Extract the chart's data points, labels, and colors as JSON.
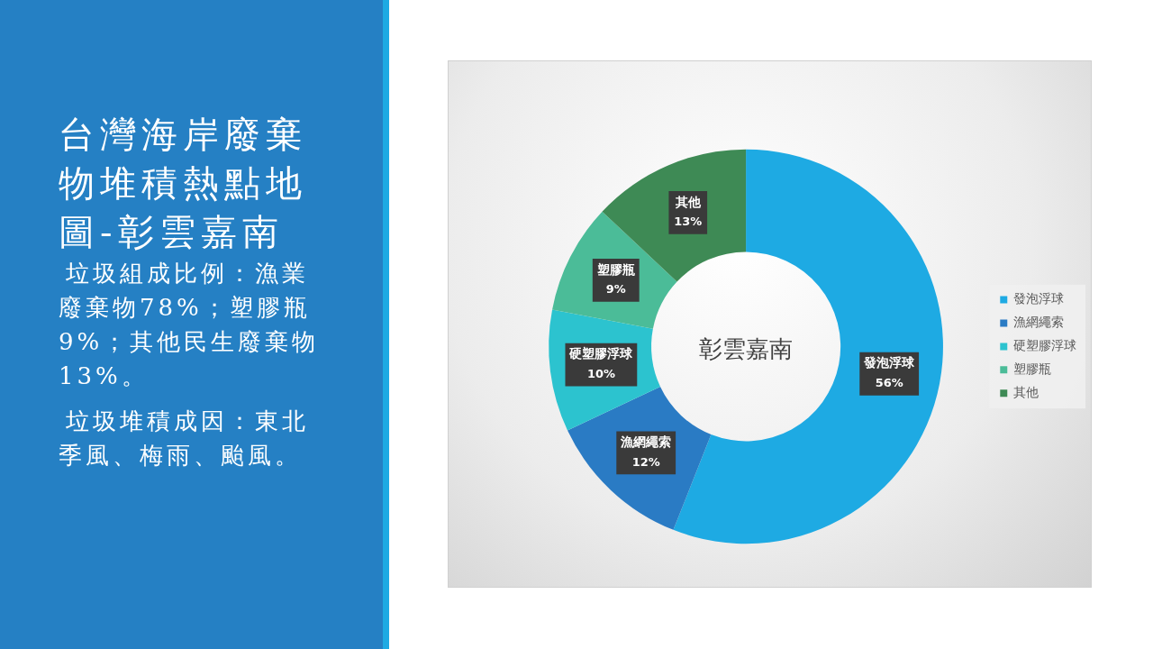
{
  "chart_data": {
    "type": "donut",
    "title": "台灣海岸廢棄物堆積熱點地圖-彰雲嘉南",
    "categories": [
      "發泡浮球",
      "漁網繩索",
      "硬塑膠浮球",
      "塑膠瓶",
      "其他"
    ],
    "values": [
      56,
      12,
      10,
      9,
      13
    ],
    "value_labels": [
      "56%",
      "12%",
      "10%",
      "9%",
      "13%"
    ],
    "colors": [
      "#1eaae3",
      "#2a7bc4",
      "#2cc3cf",
      "#4bbc98",
      "#3e8a55"
    ],
    "legend": "right",
    "annotations": [
      "彰雲嘉南",
      "垃圾組成比例：漁業廢棄物78%；塑膠瓶9%；其他民生廢棄物13%。",
      "垃圾堆積成因：東北季風、梅雨、颱風。"
    ]
  }
}
